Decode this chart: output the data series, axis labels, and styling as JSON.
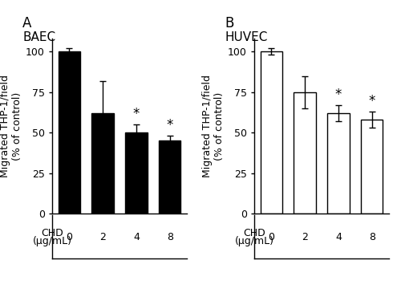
{
  "panel_A": {
    "label": "A",
    "subtitle": "BAEC",
    "categories": [
      "0",
      "2",
      "4",
      "8"
    ],
    "values": [
      100,
      62,
      50,
      45
    ],
    "errors": [
      2,
      20,
      5,
      3
    ],
    "bar_color": "black",
    "edge_color": "black",
    "sig_markers": [
      false,
      false,
      true,
      true
    ]
  },
  "panel_B": {
    "label": "B",
    "subtitle": "HUVEC",
    "categories": [
      "0",
      "2",
      "4",
      "8"
    ],
    "values": [
      100,
      75,
      62,
      58
    ],
    "errors": [
      2,
      10,
      5,
      5
    ],
    "bar_color": "white",
    "edge_color": "black",
    "sig_markers": [
      false,
      false,
      true,
      true
    ]
  },
  "ylabel": "Migrated THP-1/field\n(% of control)",
  "xlabel_line1": "CHD",
  "xlabel_line2": "(μg/mL)",
  "ylim": [
    0,
    108
  ],
  "yticks": [
    0,
    25,
    50,
    75,
    100
  ],
  "bar_width": 0.65,
  "figsize": [
    5.0,
    3.7
  ],
  "dpi": 100,
  "background_color": "white",
  "label_fontsize": 9,
  "tick_fontsize": 9,
  "subtitle_fontsize": 11,
  "panel_label_fontsize": 12,
  "star_fontsize": 12
}
